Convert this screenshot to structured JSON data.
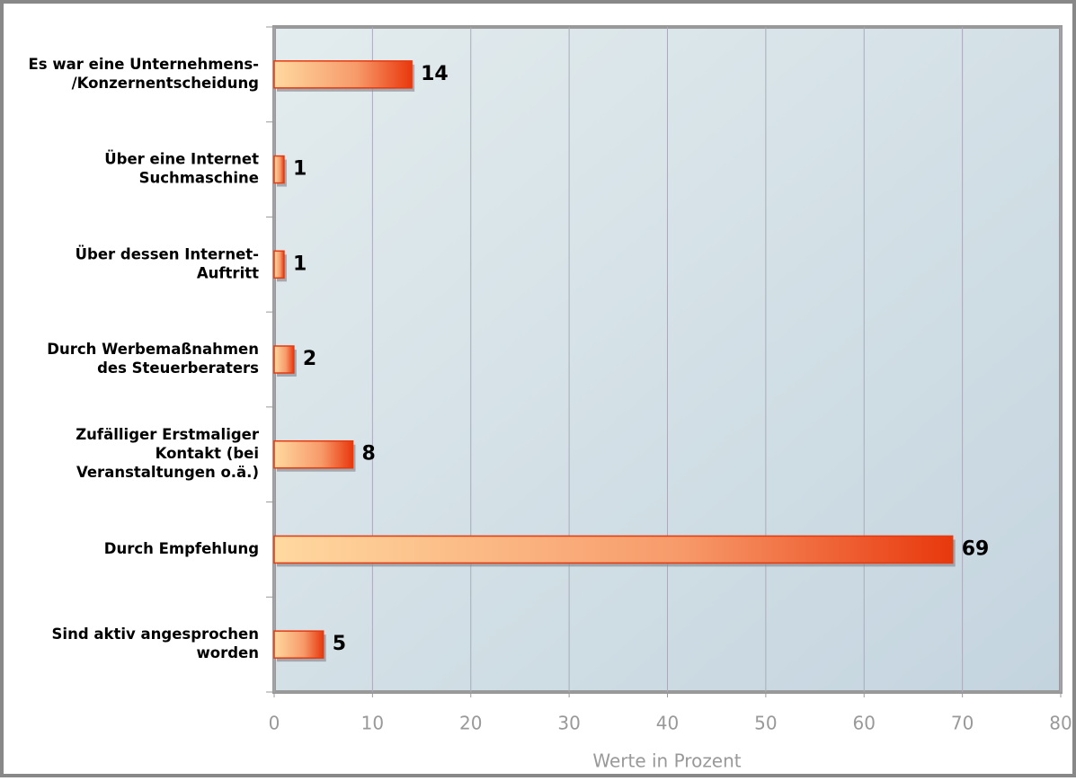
{
  "chart_data": {
    "type": "bar",
    "orientation": "horizontal",
    "categories": [
      [
        "Es war eine Unternehmens-",
        "/Konzernentscheidung"
      ],
      [
        "Über eine Internet",
        "Suchmaschine"
      ],
      [
        "Über dessen Internet-",
        "Auftritt"
      ],
      [
        "Durch Werbemaßnahmen",
        "des Steuerberaters"
      ],
      [
        "Zufälliger Erstmaliger",
        "Kontakt (bei",
        "Veranstaltungen o.ä.)"
      ],
      [
        "Durch Empfehlung"
      ],
      [
        "Sind aktiv angesprochen",
        "worden"
      ]
    ],
    "values": [
      14,
      1,
      1,
      2,
      8,
      69,
      5
    ],
    "color": "#e8380d",
    "xlabel": "Werte in Prozent",
    "xlim": [
      0,
      80
    ],
    "xticks": [
      0,
      10,
      20,
      30,
      40,
      50,
      60,
      70,
      80
    ],
    "grid": true
  }
}
